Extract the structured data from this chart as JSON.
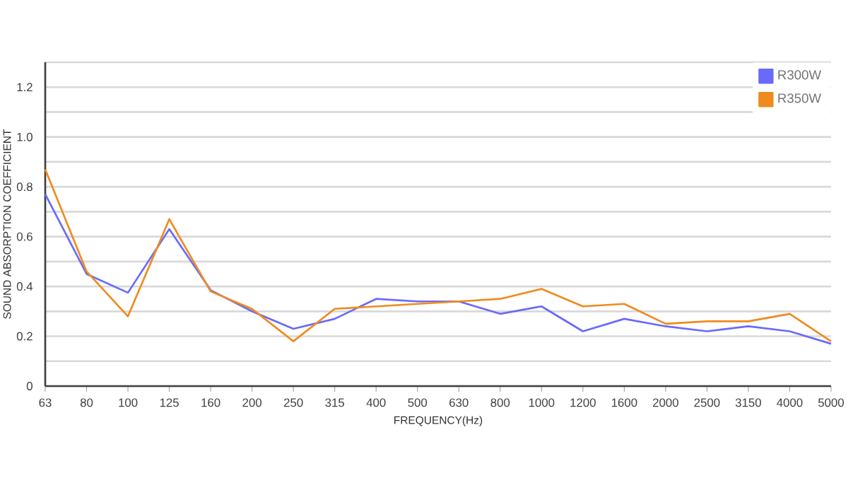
{
  "chart_data": {
    "type": "line",
    "xlabel": "FREQUENCY(Hz)",
    "ylabel": "SOUND ABSORPTION COEFFICIENT",
    "categories": [
      "63",
      "80",
      "100",
      "125",
      "160",
      "200",
      "250",
      "315",
      "400",
      "500",
      "630",
      "800",
      "1000",
      "1200",
      "1600",
      "2000",
      "2500",
      "3150",
      "4000",
      "5000"
    ],
    "series": [
      {
        "name": "R300W",
        "color": "#6a6afa",
        "values": [
          0.77,
          0.45,
          0.375,
          0.63,
          0.385,
          0.3,
          0.23,
          0.27,
          0.35,
          0.34,
          0.34,
          0.29,
          0.32,
          0.22,
          0.27,
          0.24,
          0.22,
          0.24,
          0.22,
          0.17
        ]
      },
      {
        "name": "R350W",
        "color": "#f08a1e",
        "values": [
          0.87,
          0.46,
          0.28,
          0.67,
          0.38,
          0.31,
          0.18,
          0.31,
          0.32,
          0.33,
          0.34,
          0.35,
          0.39,
          0.32,
          0.33,
          0.25,
          0.26,
          0.26,
          0.29,
          0.18
        ]
      }
    ],
    "ylim": [
      0,
      1.3
    ],
    "yticks": [
      0,
      {
        "value": 0.1,
        "label": null
      },
      0.2,
      {
        "value": 0.3,
        "label": null
      },
      0.4,
      {
        "value": 0.5,
        "label": null
      },
      0.6,
      {
        "value": 0.7,
        "label": null
      },
      0.8,
      {
        "value": 0.9,
        "label": null
      },
      {
        "value": 1.0,
        "label": "1.0"
      },
      {
        "value": 1.1,
        "label": null
      },
      1.2,
      {
        "value": 1.3,
        "label": null
      }
    ],
    "grid": "y",
    "legend": "top right",
    "marker": "none",
    "line_style": "solid"
  }
}
